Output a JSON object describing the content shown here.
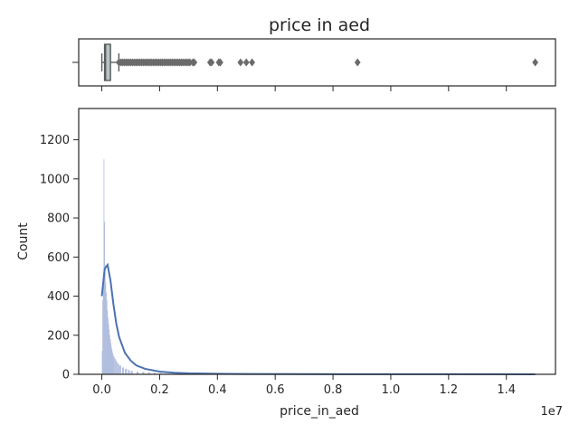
{
  "chart_data": {
    "title": "price in aed",
    "xlabel": "price_in_aed",
    "ylabel": "Count",
    "x_scale_label": "1e7",
    "xlim": [
      -0.08,
      1.57
    ],
    "ylim": [
      0,
      1360
    ],
    "x_ticks": [
      0.0,
      0.2,
      0.4,
      0.6,
      0.8,
      1.0,
      1.2,
      1.4
    ],
    "x_tick_labels": [
      "0.0",
      "0.2",
      "0.4",
      "0.6",
      "0.8",
      "1.0",
      "1.2",
      "1.4"
    ],
    "y_ticks": [
      0,
      200,
      400,
      600,
      800,
      1000,
      1200
    ],
    "y_tick_labels": [
      "0",
      "200",
      "400",
      "600",
      "800",
      "1000",
      "1200"
    ],
    "colors": {
      "hist_fill": "#a8b6da",
      "kde_line": "#4c72b0",
      "box_fill": "#b5c4c7",
      "box_edge": "#5a5a5a",
      "outlier": "#6b6b6b",
      "axes": "#262626"
    },
    "boxplot": {
      "type": "box",
      "q1": 0.0095,
      "median": 0.013,
      "q3": 0.03,
      "whisker_low": 0.0,
      "whisker_high": 0.059,
      "dense_outlier_range": [
        0.059,
        0.31
      ],
      "outliers": [
        0.315,
        0.32,
        0.375,
        0.38,
        0.405,
        0.41,
        0.48,
        0.5,
        0.52,
        0.885,
        1.5
      ]
    },
    "histogram": {
      "type": "bar",
      "bin_width": 0.002,
      "bins_x": [
        0.0,
        0.002,
        0.004,
        0.006,
        0.008,
        0.01,
        0.012,
        0.014,
        0.016,
        0.018,
        0.02,
        0.022,
        0.024,
        0.026,
        0.028,
        0.03,
        0.032,
        0.034,
        0.036,
        0.038,
        0.04,
        0.044,
        0.048,
        0.052,
        0.056,
        0.06,
        0.07,
        0.08,
        0.09,
        0.1,
        0.12,
        0.14,
        0.16,
        0.18,
        0.2,
        0.25,
        0.3,
        0.4,
        0.6,
        1.0,
        1.49
      ],
      "counts": [
        120,
        380,
        520,
        1100,
        780,
        560,
        470,
        420,
        380,
        330,
        290,
        260,
        230,
        200,
        180,
        160,
        140,
        125,
        110,
        100,
        90,
        80,
        70,
        60,
        52,
        45,
        35,
        28,
        22,
        18,
        14,
        12,
        10,
        8,
        6,
        5,
        4,
        3,
        2,
        1,
        1
      ]
    },
    "kde": {
      "type": "line",
      "x": [
        0.0,
        0.01,
        0.02,
        0.03,
        0.04,
        0.05,
        0.06,
        0.08,
        0.1,
        0.12,
        0.15,
        0.2,
        0.25,
        0.3,
        0.4,
        0.5,
        0.7,
        1.0,
        1.5
      ],
      "y": [
        400,
        540,
        560,
        480,
        360,
        260,
        190,
        110,
        70,
        45,
        28,
        14,
        8,
        5,
        3,
        2,
        1,
        0.5,
        0.2
      ]
    }
  }
}
